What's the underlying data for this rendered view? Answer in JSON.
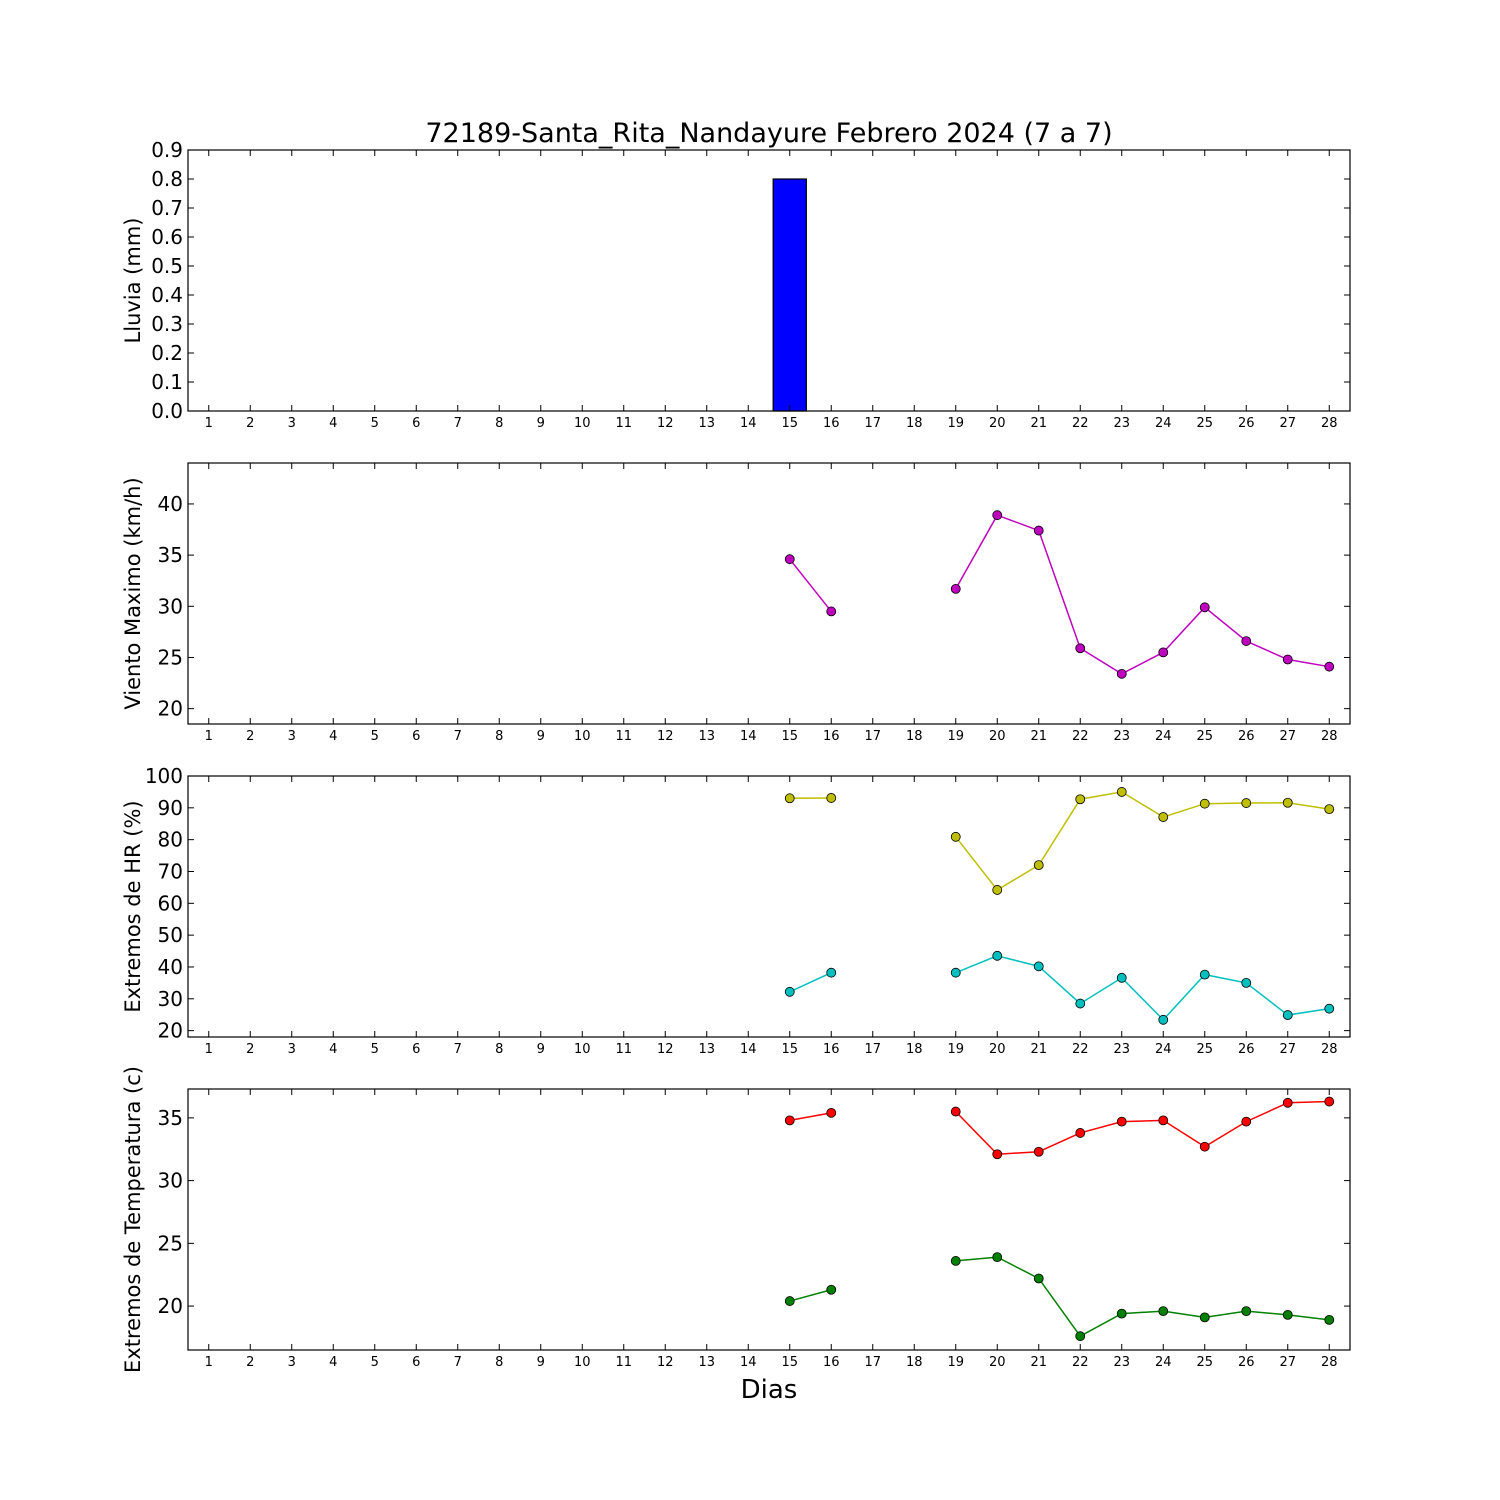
{
  "title": "72189-Santa_Rita_Nandayure Febrero 2024  (7 a 7)",
  "xlabel": "Dias",
  "chart_data": [
    {
      "type": "bar",
      "ylabel": "Lluvia (mm)",
      "ylim": [
        0,
        0.9
      ],
      "yticks": [
        0.0,
        0.1,
        0.2,
        0.3,
        0.4,
        0.5,
        0.6,
        0.7,
        0.8,
        0.9
      ],
      "ytick_decimals": 1,
      "xlim": [
        0.5,
        28.5
      ],
      "x": [
        1,
        2,
        3,
        4,
        5,
        6,
        7,
        8,
        9,
        10,
        11,
        12,
        13,
        14,
        15,
        16,
        17,
        18,
        19,
        20,
        21,
        22,
        23,
        24,
        25,
        26,
        27,
        28
      ],
      "series": [
        {
          "color": "#0000ff",
          "values": [
            null,
            null,
            null,
            null,
            null,
            null,
            null,
            null,
            null,
            null,
            null,
            null,
            null,
            null,
            0.8,
            0.0,
            null,
            null,
            0.0,
            0.0,
            0.0,
            0.0,
            0.0,
            0.0,
            0.0,
            0.0,
            0.0,
            0.0
          ]
        }
      ]
    },
    {
      "type": "line",
      "ylabel": "Viento Maximo (km/h)",
      "ylim": [
        18.5,
        44
      ],
      "yticks": [
        20,
        25,
        30,
        35,
        40
      ],
      "ytick_decimals": 0,
      "xlim": [
        0.5,
        28.5
      ],
      "x": [
        1,
        2,
        3,
        4,
        5,
        6,
        7,
        8,
        9,
        10,
        11,
        12,
        13,
        14,
        15,
        16,
        17,
        18,
        19,
        20,
        21,
        22,
        23,
        24,
        25,
        26,
        27,
        28
      ],
      "series": [
        {
          "color": "#bf00bf",
          "values": [
            null,
            null,
            null,
            null,
            null,
            null,
            null,
            null,
            null,
            null,
            null,
            null,
            null,
            null,
            34.6,
            29.5,
            null,
            null,
            31.7,
            38.9,
            37.4,
            25.9,
            23.4,
            25.5,
            29.9,
            26.6,
            24.8,
            24.1
          ]
        }
      ]
    },
    {
      "type": "line",
      "ylabel": "Extremos de HR (%)",
      "ylim": [
        18,
        100
      ],
      "yticks": [
        20,
        30,
        40,
        50,
        60,
        70,
        80,
        90,
        100
      ],
      "ytick_decimals": 0,
      "xlim": [
        0.5,
        28.5
      ],
      "x": [
        1,
        2,
        3,
        4,
        5,
        6,
        7,
        8,
        9,
        10,
        11,
        12,
        13,
        14,
        15,
        16,
        17,
        18,
        19,
        20,
        21,
        22,
        23,
        24,
        25,
        26,
        27,
        28
      ],
      "series": [
        {
          "color": "#bfbf00",
          "values": [
            null,
            null,
            null,
            null,
            null,
            null,
            null,
            null,
            null,
            null,
            null,
            null,
            null,
            null,
            93.0,
            93.1,
            null,
            null,
            80.9,
            64.2,
            72.0,
            92.7,
            95.0,
            87.1,
            91.3,
            91.5,
            91.6,
            89.6
          ]
        },
        {
          "color": "#00bfbf",
          "values": [
            null,
            null,
            null,
            null,
            null,
            null,
            null,
            null,
            null,
            null,
            null,
            null,
            null,
            null,
            32.2,
            38.2,
            null,
            null,
            38.2,
            43.5,
            40.2,
            28.5,
            36.6,
            23.4,
            37.6,
            35.0,
            24.9,
            26.9
          ]
        }
      ]
    },
    {
      "type": "line",
      "ylabel": "Extremos de Temperatura (c)",
      "ylim": [
        16.5,
        37.3
      ],
      "yticks": [
        20,
        25,
        30,
        35
      ],
      "ytick_decimals": 0,
      "xlim": [
        0.5,
        28.5
      ],
      "x": [
        1,
        2,
        3,
        4,
        5,
        6,
        7,
        8,
        9,
        10,
        11,
        12,
        13,
        14,
        15,
        16,
        17,
        18,
        19,
        20,
        21,
        22,
        23,
        24,
        25,
        26,
        27,
        28
      ],
      "series": [
        {
          "color": "#ff0000",
          "values": [
            null,
            null,
            null,
            null,
            null,
            null,
            null,
            null,
            null,
            null,
            null,
            null,
            null,
            null,
            34.8,
            35.4,
            null,
            null,
            35.5,
            32.1,
            32.3,
            33.8,
            34.7,
            34.8,
            32.7,
            34.7,
            36.2,
            36.3
          ]
        },
        {
          "color": "#008000",
          "values": [
            null,
            null,
            null,
            null,
            null,
            null,
            null,
            null,
            null,
            null,
            null,
            null,
            null,
            null,
            20.4,
            21.3,
            null,
            null,
            23.6,
            23.9,
            22.2,
            17.6,
            19.4,
            19.6,
            19.1,
            19.6,
            19.3,
            18.9
          ]
        }
      ]
    }
  ]
}
